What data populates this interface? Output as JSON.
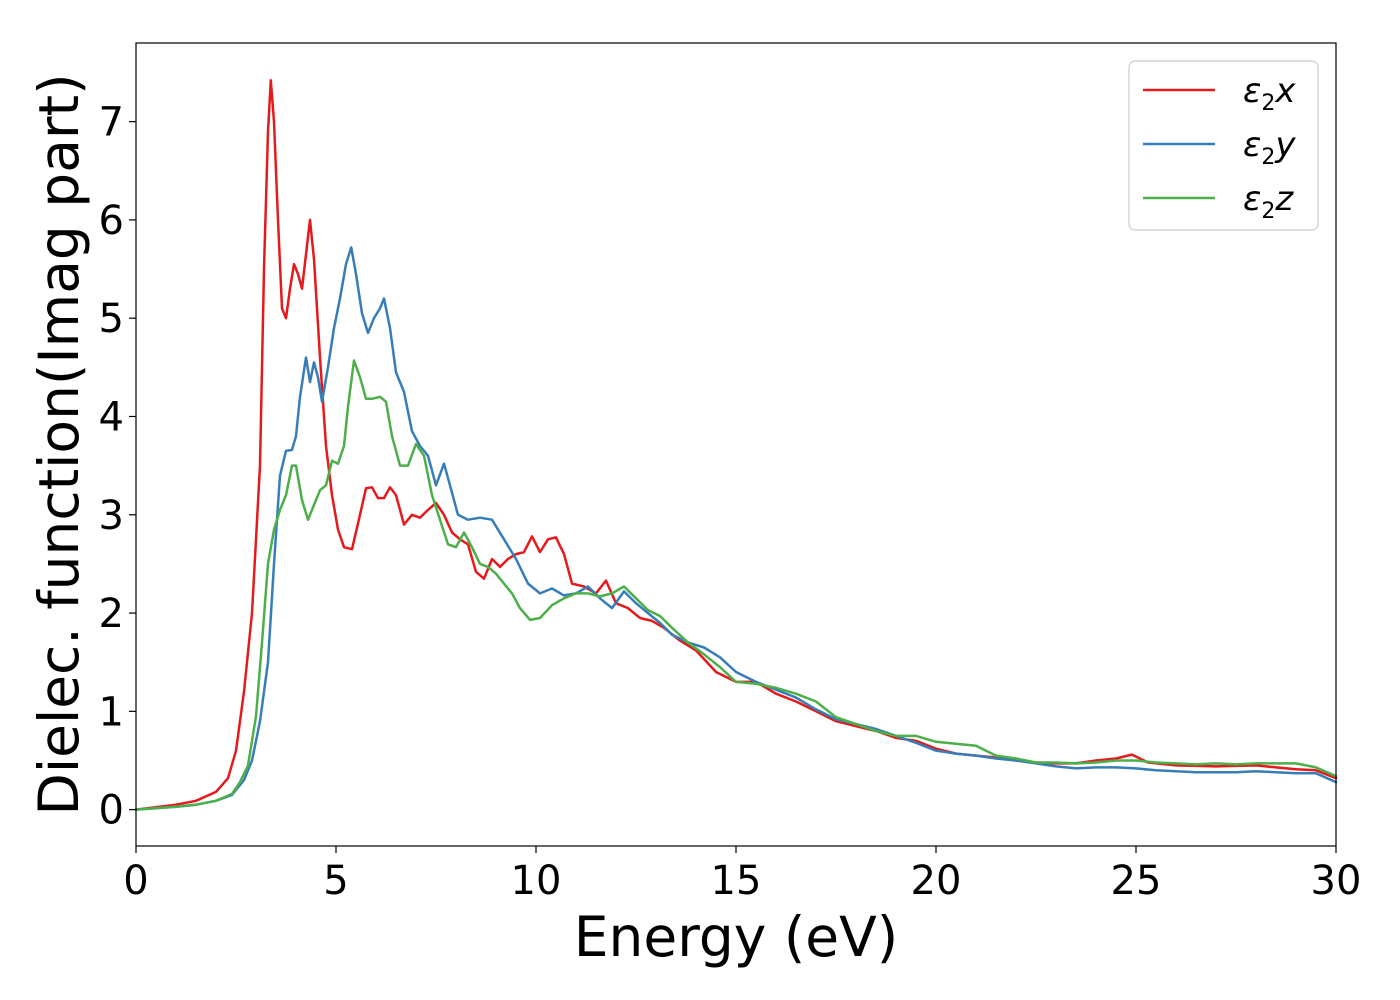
{
  "chart_data": {
    "type": "line",
    "title": "",
    "xlabel": "Energy (eV)",
    "ylabel": "Dielec. function(Imag part)",
    "xlim": [
      0,
      30
    ],
    "ylim": [
      -0.37,
      7.8
    ],
    "xticks": [
      0,
      5,
      10,
      15,
      20,
      25,
      30
    ],
    "yticks": [
      0,
      1,
      2,
      3,
      4,
      5,
      6,
      7
    ],
    "grid": false,
    "legend_position": "top-right",
    "series": [
      {
        "name": "ε2x",
        "label_main": "ε",
        "label_sub": "2",
        "label_tail": "x",
        "color": "#e41a1c",
        "points": [
          [
            0,
            0.0
          ],
          [
            1,
            0.05
          ],
          [
            1.5,
            0.09
          ],
          [
            2,
            0.18
          ],
          [
            2.3,
            0.32
          ],
          [
            2.5,
            0.6
          ],
          [
            2.7,
            1.2
          ],
          [
            2.9,
            2.0
          ],
          [
            3.1,
            3.5
          ],
          [
            3.2,
            5.5
          ],
          [
            3.3,
            6.9
          ],
          [
            3.37,
            7.42
          ],
          [
            3.45,
            7.0
          ],
          [
            3.55,
            6.0
          ],
          [
            3.65,
            5.1
          ],
          [
            3.75,
            5.0
          ],
          [
            3.85,
            5.3
          ],
          [
            3.95,
            5.55
          ],
          [
            4.05,
            5.45
          ],
          [
            4.15,
            5.3
          ],
          [
            4.25,
            5.65
          ],
          [
            4.35,
            6.0
          ],
          [
            4.45,
            5.6
          ],
          [
            4.6,
            4.6
          ],
          [
            4.75,
            3.7
          ],
          [
            4.9,
            3.2
          ],
          [
            5.05,
            2.85
          ],
          [
            5.2,
            2.67
          ],
          [
            5.4,
            2.65
          ],
          [
            5.6,
            3.0
          ],
          [
            5.75,
            3.27
          ],
          [
            5.9,
            3.28
          ],
          [
            6.05,
            3.17
          ],
          [
            6.2,
            3.17
          ],
          [
            6.35,
            3.28
          ],
          [
            6.5,
            3.2
          ],
          [
            6.7,
            2.9
          ],
          [
            6.9,
            3.0
          ],
          [
            7.1,
            2.97
          ],
          [
            7.3,
            3.05
          ],
          [
            7.5,
            3.12
          ],
          [
            7.7,
            3.0
          ],
          [
            7.9,
            2.82
          ],
          [
            8.1,
            2.75
          ],
          [
            8.3,
            2.7
          ],
          [
            8.5,
            2.42
          ],
          [
            8.7,
            2.35
          ],
          [
            8.9,
            2.55
          ],
          [
            9.1,
            2.47
          ],
          [
            9.3,
            2.55
          ],
          [
            9.5,
            2.6
          ],
          [
            9.7,
            2.62
          ],
          [
            9.9,
            2.78
          ],
          [
            10.1,
            2.62
          ],
          [
            10.3,
            2.75
          ],
          [
            10.5,
            2.77
          ],
          [
            10.7,
            2.6
          ],
          [
            10.9,
            2.3
          ],
          [
            11.2,
            2.27
          ],
          [
            11.5,
            2.2
          ],
          [
            11.75,
            2.33
          ],
          [
            12.0,
            2.1
          ],
          [
            12.3,
            2.05
          ],
          [
            12.6,
            1.95
          ],
          [
            12.9,
            1.92
          ],
          [
            13.2,
            1.85
          ],
          [
            13.6,
            1.72
          ],
          [
            14.0,
            1.62
          ],
          [
            14.5,
            1.4
          ],
          [
            15.0,
            1.3
          ],
          [
            15.5,
            1.3
          ],
          [
            16.0,
            1.18
          ],
          [
            16.5,
            1.1
          ],
          [
            17.0,
            1.0
          ],
          [
            17.5,
            0.9
          ],
          [
            18.0,
            0.85
          ],
          [
            18.5,
            0.8
          ],
          [
            19.0,
            0.73
          ],
          [
            19.5,
            0.7
          ],
          [
            20.0,
            0.62
          ],
          [
            20.5,
            0.57
          ],
          [
            21.0,
            0.55
          ],
          [
            21.5,
            0.53
          ],
          [
            22.0,
            0.5
          ],
          [
            22.5,
            0.48
          ],
          [
            23.0,
            0.47
          ],
          [
            23.5,
            0.47
          ],
          [
            24.0,
            0.5
          ],
          [
            24.5,
            0.52
          ],
          [
            24.9,
            0.56
          ],
          [
            25.3,
            0.48
          ],
          [
            26.0,
            0.45
          ],
          [
            27.0,
            0.44
          ],
          [
            28.0,
            0.45
          ],
          [
            28.5,
            0.43
          ],
          [
            29.0,
            0.41
          ],
          [
            29.5,
            0.4
          ],
          [
            30.0,
            0.32
          ]
        ]
      },
      {
        "name": "ε2y",
        "label_main": "ε",
        "label_sub": "2",
        "label_tail": "y",
        "color": "#377eb8",
        "points": [
          [
            0,
            0.0
          ],
          [
            1,
            0.03
          ],
          [
            1.5,
            0.05
          ],
          [
            2,
            0.09
          ],
          [
            2.4,
            0.15
          ],
          [
            2.7,
            0.3
          ],
          [
            2.9,
            0.5
          ],
          [
            3.1,
            0.9
          ],
          [
            3.3,
            1.5
          ],
          [
            3.45,
            2.5
          ],
          [
            3.6,
            3.4
          ],
          [
            3.75,
            3.65
          ],
          [
            3.9,
            3.66
          ],
          [
            4.0,
            3.8
          ],
          [
            4.1,
            4.2
          ],
          [
            4.25,
            4.6
          ],
          [
            4.35,
            4.35
          ],
          [
            4.45,
            4.55
          ],
          [
            4.55,
            4.4
          ],
          [
            4.65,
            4.15
          ],
          [
            4.8,
            4.5
          ],
          [
            4.95,
            4.9
          ],
          [
            5.1,
            5.2
          ],
          [
            5.25,
            5.55
          ],
          [
            5.38,
            5.72
          ],
          [
            5.5,
            5.45
          ],
          [
            5.65,
            5.05
          ],
          [
            5.8,
            4.85
          ],
          [
            5.95,
            5.0
          ],
          [
            6.1,
            5.1
          ],
          [
            6.2,
            5.2
          ],
          [
            6.35,
            4.9
          ],
          [
            6.5,
            4.45
          ],
          [
            6.7,
            4.25
          ],
          [
            6.9,
            3.85
          ],
          [
            7.1,
            3.7
          ],
          [
            7.3,
            3.6
          ],
          [
            7.5,
            3.3
          ],
          [
            7.7,
            3.52
          ],
          [
            7.85,
            3.3
          ],
          [
            8.05,
            3.0
          ],
          [
            8.3,
            2.95
          ],
          [
            8.6,
            2.97
          ],
          [
            8.9,
            2.95
          ],
          [
            9.2,
            2.75
          ],
          [
            9.5,
            2.55
          ],
          [
            9.8,
            2.3
          ],
          [
            10.1,
            2.2
          ],
          [
            10.4,
            2.25
          ],
          [
            10.7,
            2.18
          ],
          [
            11.0,
            2.2
          ],
          [
            11.3,
            2.27
          ],
          [
            11.6,
            2.15
          ],
          [
            11.9,
            2.05
          ],
          [
            12.2,
            2.22
          ],
          [
            12.5,
            2.1
          ],
          [
            12.8,
            2.0
          ],
          [
            13.1,
            1.9
          ],
          [
            13.4,
            1.78
          ],
          [
            13.8,
            1.7
          ],
          [
            14.2,
            1.65
          ],
          [
            14.6,
            1.55
          ],
          [
            15.0,
            1.4
          ],
          [
            15.5,
            1.3
          ],
          [
            16.0,
            1.22
          ],
          [
            16.5,
            1.14
          ],
          [
            17.0,
            1.02
          ],
          [
            17.5,
            0.92
          ],
          [
            18.0,
            0.87
          ],
          [
            18.5,
            0.82
          ],
          [
            19.0,
            0.75
          ],
          [
            19.5,
            0.68
          ],
          [
            20.0,
            0.6
          ],
          [
            20.5,
            0.57
          ],
          [
            21.0,
            0.55
          ],
          [
            21.5,
            0.52
          ],
          [
            22.0,
            0.5
          ],
          [
            22.5,
            0.47
          ],
          [
            23.0,
            0.44
          ],
          [
            23.5,
            0.42
          ],
          [
            24.0,
            0.43
          ],
          [
            24.5,
            0.43
          ],
          [
            25.0,
            0.42
          ],
          [
            25.5,
            0.4
          ],
          [
            26.0,
            0.39
          ],
          [
            26.5,
            0.38
          ],
          [
            27.0,
            0.38
          ],
          [
            27.5,
            0.38
          ],
          [
            28.0,
            0.39
          ],
          [
            28.5,
            0.38
          ],
          [
            29.0,
            0.37
          ],
          [
            29.5,
            0.37
          ],
          [
            30.0,
            0.28
          ]
        ]
      },
      {
        "name": "ε2z",
        "label_main": "ε",
        "label_sub": "2",
        "label_tail": "z",
        "color": "#4daf4a",
        "points": [
          [
            0,
            0.0
          ],
          [
            1,
            0.03
          ],
          [
            1.5,
            0.05
          ],
          [
            2,
            0.09
          ],
          [
            2.4,
            0.16
          ],
          [
            2.6,
            0.28
          ],
          [
            2.8,
            0.45
          ],
          [
            3.0,
            0.95
          ],
          [
            3.15,
            1.7
          ],
          [
            3.3,
            2.5
          ],
          [
            3.45,
            2.85
          ],
          [
            3.6,
            3.05
          ],
          [
            3.75,
            3.2
          ],
          [
            3.9,
            3.5
          ],
          [
            4.0,
            3.5
          ],
          [
            4.15,
            3.15
          ],
          [
            4.3,
            2.95
          ],
          [
            4.45,
            3.1
          ],
          [
            4.6,
            3.25
          ],
          [
            4.75,
            3.3
          ],
          [
            4.9,
            3.55
          ],
          [
            5.05,
            3.52
          ],
          [
            5.2,
            3.7
          ],
          [
            5.3,
            4.1
          ],
          [
            5.45,
            4.57
          ],
          [
            5.6,
            4.4
          ],
          [
            5.75,
            4.18
          ],
          [
            5.9,
            4.18
          ],
          [
            6.1,
            4.2
          ],
          [
            6.25,
            4.15
          ],
          [
            6.4,
            3.8
          ],
          [
            6.6,
            3.5
          ],
          [
            6.8,
            3.5
          ],
          [
            7.0,
            3.72
          ],
          [
            7.2,
            3.6
          ],
          [
            7.4,
            3.2
          ],
          [
            7.6,
            2.95
          ],
          [
            7.8,
            2.7
          ],
          [
            8.0,
            2.67
          ],
          [
            8.2,
            2.82
          ],
          [
            8.4,
            2.67
          ],
          [
            8.6,
            2.5
          ],
          [
            8.8,
            2.47
          ],
          [
            9.0,
            2.4
          ],
          [
            9.2,
            2.3
          ],
          [
            9.4,
            2.2
          ],
          [
            9.6,
            2.05
          ],
          [
            9.85,
            1.93
          ],
          [
            10.1,
            1.95
          ],
          [
            10.4,
            2.08
          ],
          [
            10.7,
            2.15
          ],
          [
            11.0,
            2.2
          ],
          [
            11.3,
            2.2
          ],
          [
            11.6,
            2.17
          ],
          [
            11.9,
            2.2
          ],
          [
            12.2,
            2.27
          ],
          [
            12.5,
            2.15
          ],
          [
            12.8,
            2.03
          ],
          [
            13.1,
            1.97
          ],
          [
            13.4,
            1.85
          ],
          [
            13.8,
            1.7
          ],
          [
            14.2,
            1.58
          ],
          [
            14.6,
            1.45
          ],
          [
            15.0,
            1.3
          ],
          [
            15.5,
            1.28
          ],
          [
            16.0,
            1.24
          ],
          [
            16.5,
            1.18
          ],
          [
            17.0,
            1.1
          ],
          [
            17.5,
            0.94
          ],
          [
            18.0,
            0.87
          ],
          [
            18.5,
            0.8
          ],
          [
            19.0,
            0.75
          ],
          [
            19.5,
            0.75
          ],
          [
            20.0,
            0.69
          ],
          [
            20.5,
            0.67
          ],
          [
            21.0,
            0.65
          ],
          [
            21.5,
            0.55
          ],
          [
            22.0,
            0.52
          ],
          [
            22.5,
            0.48
          ],
          [
            23.0,
            0.48
          ],
          [
            23.5,
            0.47
          ],
          [
            24.0,
            0.48
          ],
          [
            24.5,
            0.5
          ],
          [
            25.0,
            0.5
          ],
          [
            25.5,
            0.48
          ],
          [
            26.0,
            0.47
          ],
          [
            26.5,
            0.46
          ],
          [
            27.0,
            0.47
          ],
          [
            27.5,
            0.46
          ],
          [
            28.0,
            0.47
          ],
          [
            28.5,
            0.47
          ],
          [
            29.0,
            0.47
          ],
          [
            29.5,
            0.43
          ],
          [
            30.0,
            0.34
          ]
        ]
      }
    ]
  }
}
